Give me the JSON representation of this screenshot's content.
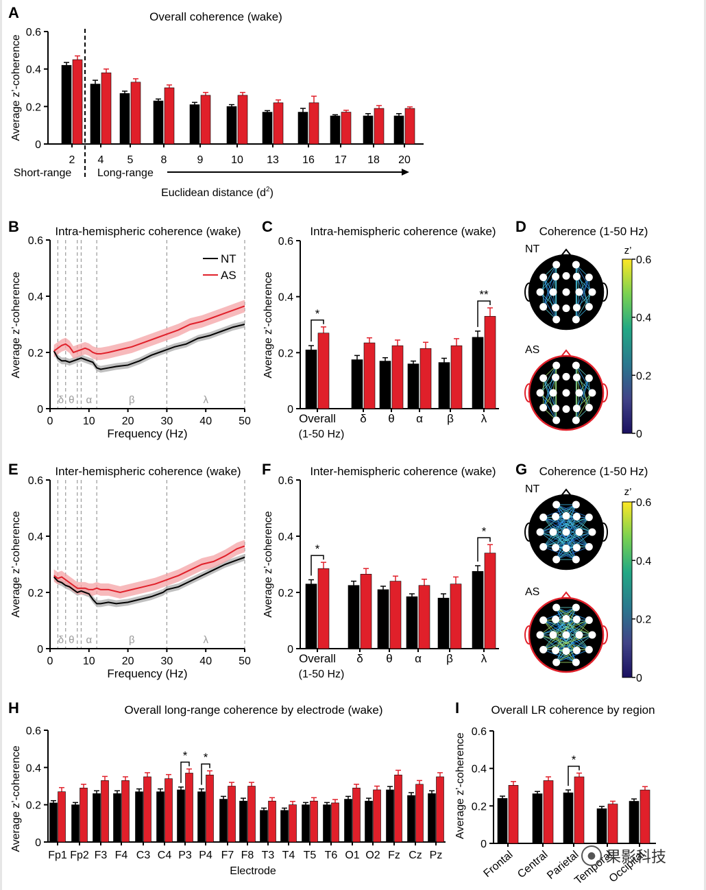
{
  "watermark": {
    "icon": "wechat-icon",
    "text": "果影科技"
  },
  "chart_data": [
    {
      "id": "A",
      "type": "bar",
      "panel_letter": "A",
      "title": "Overall coherence (wake)",
      "ylabel": "Average z’-coherence",
      "xlabel": "Euclidean distance (d2)",
      "ylim": [
        0,
        0.6
      ],
      "yticks": [
        "0",
        "0.2",
        "0.4",
        "0.6"
      ],
      "categories": [
        "2",
        "4",
        "5",
        "8",
        "9",
        "10",
        "13",
        "16",
        "17",
        "18",
        "20"
      ],
      "series": [
        {
          "name": "NT",
          "color": "#000000",
          "values": [
            0.42,
            0.32,
            0.27,
            0.23,
            0.21,
            0.2,
            0.17,
            0.17,
            0.15,
            0.15,
            0.15
          ],
          "errors": [
            0.015,
            0.02,
            0.012,
            0.01,
            0.012,
            0.01,
            0.008,
            0.02,
            0.006,
            0.012,
            0.012
          ]
        },
        {
          "name": "AS",
          "color": "#e0202a",
          "values": [
            0.45,
            0.38,
            0.33,
            0.3,
            0.26,
            0.26,
            0.22,
            0.22,
            0.17,
            0.19,
            0.19
          ],
          "errors": [
            0.02,
            0.02,
            0.018,
            0.015,
            0.015,
            0.015,
            0.015,
            0.035,
            0.01,
            0.015,
            0.008
          ]
        }
      ],
      "annotations": {
        "short": "Short-range",
        "long": "Long-range"
      }
    },
    {
      "id": "B",
      "type": "line",
      "panel_letter": "B",
      "title": "Intra-hemispheric coherence (wake)",
      "ylabel": "Average z’-coherence",
      "xlabel": "Frequency (Hz)",
      "xlim": [
        0,
        50
      ],
      "ylim": [
        0,
        0.6
      ],
      "xticks": [
        "0",
        "10",
        "20",
        "30",
        "40",
        "50"
      ],
      "yticks": [
        "0",
        "0.2",
        "0.4",
        "0.6"
      ],
      "band_lines": [
        2,
        4,
        7,
        8,
        12,
        30,
        50
      ],
      "band_labels": [
        {
          "x": 2.8,
          "t": "δ"
        },
        {
          "x": 5.5,
          "t": "θ"
        },
        {
          "x": 10,
          "t": "α"
        },
        {
          "x": 21,
          "t": "β"
        },
        {
          "x": 40,
          "t": "λ"
        }
      ],
      "legend": [
        "NT",
        "AS"
      ],
      "series": [
        {
          "name": "NT",
          "color": "#000000",
          "band": 0.012,
          "points": [
            [
              1,
              0.205
            ],
            [
              2,
              0.18
            ],
            [
              3,
              0.17
            ],
            [
              4,
              0.17
            ],
            [
              5,
              0.165
            ],
            [
              6,
              0.17
            ],
            [
              7,
              0.175
            ],
            [
              8,
              0.18
            ],
            [
              9,
              0.175
            ],
            [
              10,
              0.17
            ],
            [
              11,
              0.165
            ],
            [
              12,
              0.145
            ],
            [
              13,
              0.14
            ],
            [
              15,
              0.145
            ],
            [
              17,
              0.15
            ],
            [
              20,
              0.155
            ],
            [
              23,
              0.17
            ],
            [
              26,
              0.19
            ],
            [
              28,
              0.2
            ],
            [
              30,
              0.21
            ],
            [
              32,
              0.22
            ],
            [
              35,
              0.23
            ],
            [
              38,
              0.25
            ],
            [
              41,
              0.26
            ],
            [
              44,
              0.275
            ],
            [
              47,
              0.29
            ],
            [
              50,
              0.3
            ]
          ]
        },
        {
          "name": "AS",
          "color": "#e0202a",
          "band": 0.022,
          "points": [
            [
              1,
              0.205
            ],
            [
              2,
              0.215
            ],
            [
              3,
              0.225
            ],
            [
              4,
              0.23
            ],
            [
              5,
              0.22
            ],
            [
              6,
              0.2
            ],
            [
              7,
              0.205
            ],
            [
              8,
              0.21
            ],
            [
              9,
              0.215
            ],
            [
              10,
              0.21
            ],
            [
              11,
              0.2
            ],
            [
              12,
              0.195
            ],
            [
              13,
              0.195
            ],
            [
              15,
              0.2
            ],
            [
              18,
              0.21
            ],
            [
              21,
              0.22
            ],
            [
              24,
              0.235
            ],
            [
              27,
              0.25
            ],
            [
              30,
              0.265
            ],
            [
              33,
              0.28
            ],
            [
              36,
              0.3
            ],
            [
              39,
              0.31
            ],
            [
              42,
              0.325
            ],
            [
              45,
              0.34
            ],
            [
              48,
              0.355
            ],
            [
              50,
              0.365
            ]
          ]
        }
      ]
    },
    {
      "id": "C",
      "type": "bar",
      "panel_letter": "C",
      "title": "Intra-hemispheric coherence (wake)",
      "ylabel": "Average z’-coherence",
      "ylim": [
        0,
        0.6
      ],
      "yticks": [
        "0",
        "0.2",
        "0.4",
        "0.6"
      ],
      "categories": [
        "Overall",
        "δ",
        "θ",
        "α",
        "β",
        "λ"
      ],
      "subtitle0": "(1-50 Hz)",
      "series": [
        {
          "name": "NT",
          "color": "#000000",
          "values": [
            0.21,
            0.175,
            0.17,
            0.16,
            0.165,
            0.255
          ],
          "errors": [
            0.015,
            0.015,
            0.012,
            0.01,
            0.015,
            0.022
          ]
        },
        {
          "name": "AS",
          "color": "#e0202a",
          "values": [
            0.27,
            0.235,
            0.225,
            0.215,
            0.225,
            0.33
          ],
          "errors": [
            0.022,
            0.018,
            0.02,
            0.022,
            0.025,
            0.03
          ]
        }
      ],
      "sig": [
        {
          "i": 0,
          "t": "*"
        },
        {
          "i": 5,
          "t": "**"
        }
      ]
    },
    {
      "id": "E",
      "type": "line",
      "panel_letter": "E",
      "title": "Inter-hemispheric coherence (wake)",
      "ylabel": "Average z’-coherence",
      "xlabel": "Frequency (Hz)",
      "xlim": [
        0,
        50
      ],
      "ylim": [
        0,
        0.6
      ],
      "xticks": [
        "0",
        "10",
        "20",
        "30",
        "40",
        "50"
      ],
      "yticks": [
        "0",
        "0.2",
        "0.4",
        "0.6"
      ],
      "band_lines": [
        2,
        4,
        7,
        8,
        12,
        30,
        50
      ],
      "band_labels": [
        {
          "x": 2.8,
          "t": "δ"
        },
        {
          "x": 5.5,
          "t": "θ"
        },
        {
          "x": 10,
          "t": "α"
        },
        {
          "x": 21,
          "t": "β"
        },
        {
          "x": 40,
          "t": "λ"
        }
      ],
      "series": [
        {
          "name": "NT",
          "color": "#000000",
          "band": 0.012,
          "points": [
            [
              1,
              0.255
            ],
            [
              2,
              0.24
            ],
            [
              3,
              0.235
            ],
            [
              4,
              0.225
            ],
            [
              5,
              0.22
            ],
            [
              6,
              0.21
            ],
            [
              7,
              0.2
            ],
            [
              8,
              0.205
            ],
            [
              9,
              0.2
            ],
            [
              10,
              0.195
            ],
            [
              11,
              0.175
            ],
            [
              12,
              0.16
            ],
            [
              13,
              0.16
            ],
            [
              15,
              0.165
            ],
            [
              17,
              0.16
            ],
            [
              20,
              0.165
            ],
            [
              23,
              0.175
            ],
            [
              26,
              0.185
            ],
            [
              29,
              0.2
            ],
            [
              30,
              0.21
            ],
            [
              33,
              0.22
            ],
            [
              36,
              0.24
            ],
            [
              39,
              0.26
            ],
            [
              42,
              0.28
            ],
            [
              45,
              0.3
            ],
            [
              48,
              0.315
            ],
            [
              50,
              0.325
            ]
          ]
        },
        {
          "name": "AS",
          "color": "#e0202a",
          "band": 0.022,
          "points": [
            [
              1,
              0.26
            ],
            [
              2,
              0.25
            ],
            [
              3,
              0.255
            ],
            [
              4,
              0.245
            ],
            [
              5,
              0.235
            ],
            [
              6,
              0.225
            ],
            [
              7,
              0.215
            ],
            [
              8,
              0.215
            ],
            [
              9,
              0.215
            ],
            [
              10,
              0.21
            ],
            [
              11,
              0.21
            ],
            [
              12,
              0.215
            ],
            [
              13,
              0.21
            ],
            [
              15,
              0.21
            ],
            [
              18,
              0.2
            ],
            [
              21,
              0.21
            ],
            [
              24,
              0.22
            ],
            [
              27,
              0.23
            ],
            [
              30,
              0.245
            ],
            [
              33,
              0.26
            ],
            [
              36,
              0.28
            ],
            [
              39,
              0.3
            ],
            [
              42,
              0.31
            ],
            [
              45,
              0.33
            ],
            [
              48,
              0.355
            ],
            [
              50,
              0.365
            ]
          ]
        }
      ]
    },
    {
      "id": "F",
      "type": "bar",
      "panel_letter": "F",
      "title": "Inter-hemispheric coherence (wake)",
      "ylabel": "Average z’-coherence",
      "ylim": [
        0,
        0.6
      ],
      "yticks": [
        "0",
        "0.2",
        "0.4",
        "0.6"
      ],
      "categories": [
        "Overall",
        "δ",
        "θ",
        "α",
        "β",
        "λ"
      ],
      "subtitle0": "(1-50 Hz)",
      "series": [
        {
          "name": "NT",
          "color": "#000000",
          "values": [
            0.23,
            0.225,
            0.21,
            0.185,
            0.18,
            0.275
          ],
          "errors": [
            0.015,
            0.015,
            0.012,
            0.01,
            0.015,
            0.02
          ]
        },
        {
          "name": "AS",
          "color": "#e0202a",
          "values": [
            0.285,
            0.265,
            0.24,
            0.225,
            0.23,
            0.34
          ],
          "errors": [
            0.022,
            0.02,
            0.018,
            0.022,
            0.025,
            0.03
          ]
        }
      ],
      "sig": [
        {
          "i": 0,
          "t": "*"
        },
        {
          "i": 5,
          "t": "*"
        }
      ]
    },
    {
      "id": "H",
      "type": "bar",
      "panel_letter": "H",
      "title": "Overall long-range coherence by electrode (wake)",
      "ylabel": "Average z’-coherence",
      "xlabel": "Electrode",
      "ylim": [
        0,
        0.6
      ],
      "yticks": [
        "0",
        "0.2",
        "0.4",
        "0.6"
      ],
      "categories": [
        "Fp1",
        "Fp2",
        "F3",
        "F4",
        "C3",
        "C4",
        "P3",
        "P4",
        "F7",
        "F8",
        "T3",
        "T4",
        "T5",
        "T6",
        "O1",
        "O2",
        "Fz",
        "Cz",
        "Pz"
      ],
      "series": [
        {
          "name": "NT",
          "color": "#000000",
          "values": [
            0.21,
            0.2,
            0.26,
            0.26,
            0.27,
            0.27,
            0.28,
            0.27,
            0.23,
            0.22,
            0.17,
            0.17,
            0.2,
            0.2,
            0.23,
            0.22,
            0.28,
            0.25,
            0.26
          ],
          "errors": [
            0.012,
            0.012,
            0.015,
            0.015,
            0.015,
            0.015,
            0.015,
            0.015,
            0.015,
            0.015,
            0.012,
            0.012,
            0.012,
            0.012,
            0.015,
            0.015,
            0.018,
            0.015,
            0.015
          ]
        },
        {
          "name": "AS",
          "color": "#e0202a",
          "values": [
            0.27,
            0.29,
            0.33,
            0.33,
            0.35,
            0.34,
            0.37,
            0.36,
            0.3,
            0.3,
            0.22,
            0.2,
            0.22,
            0.21,
            0.29,
            0.28,
            0.36,
            0.31,
            0.35
          ],
          "errors": [
            0.022,
            0.02,
            0.022,
            0.02,
            0.022,
            0.022,
            0.022,
            0.022,
            0.02,
            0.02,
            0.018,
            0.018,
            0.018,
            0.018,
            0.02,
            0.02,
            0.025,
            0.02,
            0.022
          ]
        }
      ],
      "sig": [
        {
          "i": 6,
          "t": "*"
        },
        {
          "i": 7,
          "t": "*"
        }
      ]
    },
    {
      "id": "I",
      "type": "bar",
      "panel_letter": "I",
      "title": "Overall LR coherence by region",
      "ylabel": "Average z’-coherence",
      "ylim": [
        0,
        0.6
      ],
      "yticks": [
        "0",
        "0.2",
        "0.4",
        "0.6"
      ],
      "categories": [
        "Frontal",
        "Central",
        "Parietal",
        "Temporal",
        "Occipital"
      ],
      "series": [
        {
          "name": "NT",
          "color": "#000000",
          "values": [
            0.24,
            0.265,
            0.27,
            0.185,
            0.225
          ],
          "errors": [
            0.012,
            0.012,
            0.015,
            0.012,
            0.012
          ]
        },
        {
          "name": "AS",
          "color": "#e0202a",
          "values": [
            0.31,
            0.335,
            0.355,
            0.21,
            0.285
          ],
          "errors": [
            0.02,
            0.02,
            0.02,
            0.015,
            0.018
          ]
        }
      ],
      "sig": [
        {
          "i": 2,
          "t": "*"
        }
      ]
    }
  ],
  "head_maps": [
    {
      "id": "D",
      "panel_letter": "D",
      "title": "Coherence (1-50 Hz)",
      "top_label": "NT",
      "bottom_label": "AS",
      "mode": "intra",
      "colorbar": {
        "label": "z’",
        "ticks": [
          "0.6",
          "0.4",
          "0.2",
          "0"
        ],
        "colors": [
          "#fde725",
          "#7ad151",
          "#22a884",
          "#2a788e",
          "#414487",
          "#1a1060"
        ]
      }
    },
    {
      "id": "G",
      "panel_letter": "G",
      "title": "Coherence (1-50 Hz)",
      "top_label": "NT",
      "bottom_label": "AS",
      "mode": "inter",
      "colorbar": {
        "label": "z’",
        "ticks": [
          "0.6",
          "0.4",
          "0.2",
          "0"
        ],
        "colors": [
          "#fde725",
          "#7ad151",
          "#22a884",
          "#2a788e",
          "#414487",
          "#1a1060"
        ]
      }
    }
  ]
}
